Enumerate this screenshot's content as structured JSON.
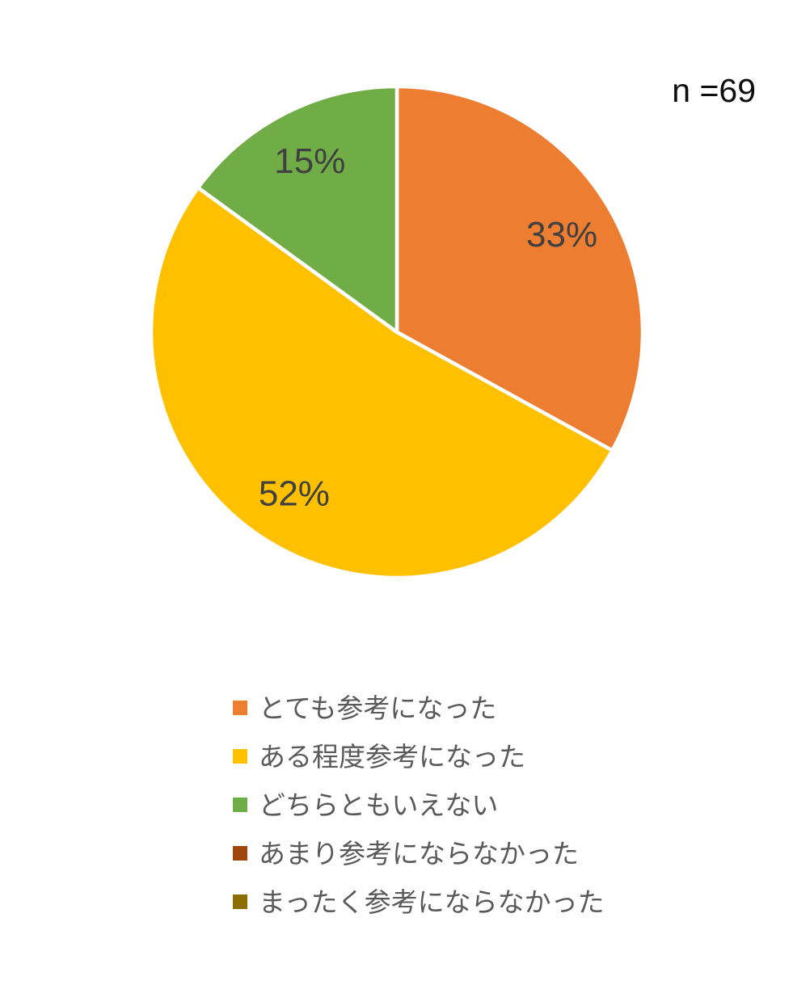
{
  "annotation": {
    "sample_size_label": "n =69"
  },
  "chart_data": {
    "type": "pie",
    "title": "",
    "categories": [
      "とても参考になった",
      "ある程度参考になった",
      "どちらともいえない",
      "あまり参考にならなかった",
      "まったく参考にならなかった"
    ],
    "values": [
      33,
      52,
      15,
      0,
      0
    ],
    "unit": "percent",
    "visible_data_labels": [
      "33%",
      "52%",
      "15%"
    ],
    "colors": [
      "#ED7D31",
      "#FFC000",
      "#70AD47",
      "#9E480E",
      "#8F6E00"
    ],
    "start_angle_deg": 0,
    "direction": "clockwise",
    "legend_position": "bottom-left",
    "data_label_color": "#404040",
    "legend_text_color": "#595959",
    "sample_size_label": "n =69"
  },
  "legend": {
    "items": [
      {
        "label": "とても参考になった",
        "color": "#ED7D31"
      },
      {
        "label": "ある程度参考になった",
        "color": "#FFC000"
      },
      {
        "label": "どちらともいえない",
        "color": "#70AD47"
      },
      {
        "label": "あまり参考にならなかった",
        "color": "#9E480E"
      },
      {
        "label": "まったく参考にならなかった",
        "color": "#8F6E00"
      }
    ]
  }
}
